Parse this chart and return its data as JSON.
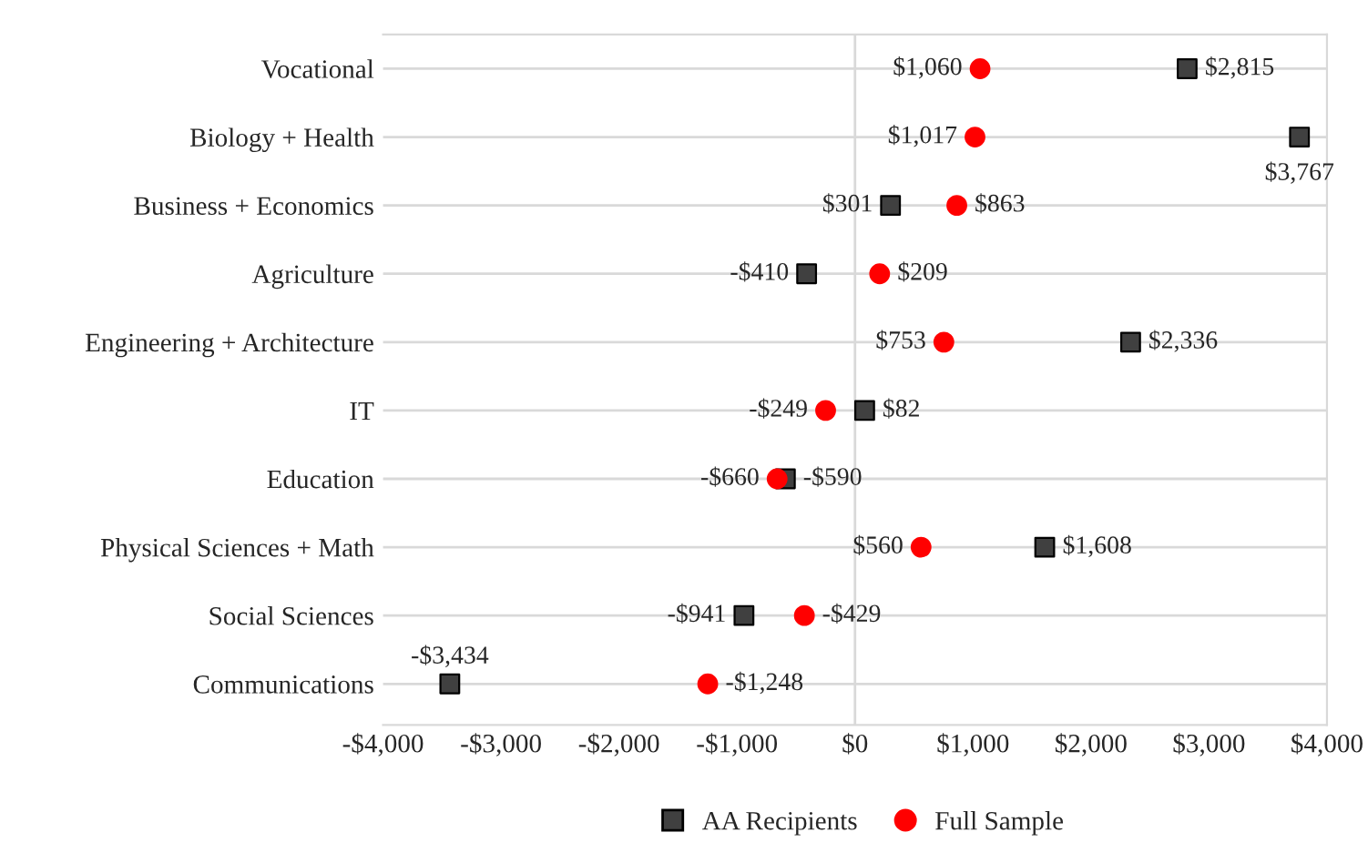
{
  "chart_data": {
    "type": "scatter",
    "orientation": "horizontal",
    "categories": [
      "Vocational",
      "Biology + Health",
      "Business + Economics",
      "Agriculture",
      "Engineering + Architecture",
      "IT",
      "Education",
      "Physical Sciences + Math",
      "Social Sciences",
      "Communications"
    ],
    "series": [
      {
        "name": "AA Recipients",
        "color": "#404040",
        "marker": "square",
        "values": [
          2815,
          3767,
          301,
          -410,
          2336,
          82,
          -590,
          1608,
          -941,
          -3434
        ],
        "value_labels": [
          "$2,815",
          "$3,767",
          "$301",
          "-$410",
          "$2,336",
          "$82",
          "-$590",
          "$1,608",
          "-$941",
          "-$3,434"
        ]
      },
      {
        "name": "Full Sample",
        "color": "#ff0000",
        "marker": "circle",
        "values": [
          1060,
          1017,
          863,
          209,
          753,
          -249,
          -660,
          560,
          -429,
          -1248
        ],
        "value_labels": [
          "$1,060",
          "$1,017",
          "$863",
          "$209",
          "$753",
          "-$249",
          "-$660",
          "$560",
          "-$429",
          "-$1,248"
        ]
      }
    ],
    "xlim": [
      -4000,
      4000
    ],
    "xticks": [
      {
        "value": -4000,
        "label": "-$4,000"
      },
      {
        "value": -3000,
        "label": "-$3,000"
      },
      {
        "value": -2000,
        "label": "-$2,000"
      },
      {
        "value": -1000,
        "label": "-$1,000"
      },
      {
        "value": 0,
        "label": "$0"
      },
      {
        "value": 1000,
        "label": "$1,000"
      },
      {
        "value": 2000,
        "label": "$2,000"
      },
      {
        "value": 3000,
        "label": "$3,000"
      },
      {
        "value": 4000,
        "label": "$4,000"
      }
    ],
    "ref_lines": [
      {
        "axis": "x",
        "value": 0,
        "color": "#d9d9d9"
      }
    ],
    "grid": "y",
    "legend": "bottom"
  }
}
